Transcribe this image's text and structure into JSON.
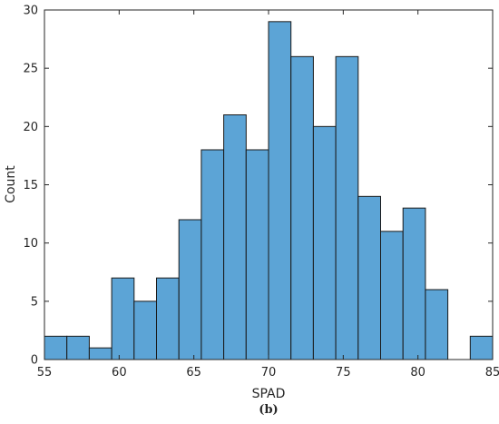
{
  "chart_data": {
    "type": "bar",
    "subtype": "histogram",
    "xlabel": "SPAD",
    "ylabel": "Count",
    "caption": "(b)",
    "xlim": [
      55,
      85
    ],
    "ylim": [
      0,
      30
    ],
    "xticks": [
      55,
      60,
      65,
      70,
      75,
      80,
      85
    ],
    "yticks": [
      0,
      5,
      10,
      15,
      20,
      25,
      30
    ],
    "bin_width": 1.5,
    "bins": [
      {
        "start": 55.0,
        "end": 56.5,
        "count": 2
      },
      {
        "start": 56.5,
        "end": 58.0,
        "count": 2
      },
      {
        "start": 58.0,
        "end": 59.5,
        "count": 1
      },
      {
        "start": 59.5,
        "end": 61.0,
        "count": 7
      },
      {
        "start": 61.0,
        "end": 62.5,
        "count": 5
      },
      {
        "start": 62.5,
        "end": 64.0,
        "count": 7
      },
      {
        "start": 64.0,
        "end": 65.5,
        "count": 12
      },
      {
        "start": 65.5,
        "end": 67.0,
        "count": 18
      },
      {
        "start": 67.0,
        "end": 68.5,
        "count": 21
      },
      {
        "start": 68.5,
        "end": 70.0,
        "count": 18
      },
      {
        "start": 70.0,
        "end": 71.5,
        "count": 29
      },
      {
        "start": 71.5,
        "end": 73.0,
        "count": 26
      },
      {
        "start": 73.0,
        "end": 74.5,
        "count": 20
      },
      {
        "start": 74.5,
        "end": 76.0,
        "count": 26
      },
      {
        "start": 76.0,
        "end": 77.5,
        "count": 14
      },
      {
        "start": 77.5,
        "end": 79.0,
        "count": 11
      },
      {
        "start": 79.0,
        "end": 80.5,
        "count": 13
      },
      {
        "start": 80.5,
        "end": 82.0,
        "count": 6
      },
      {
        "start": 82.0,
        "end": 83.5,
        "count": 0
      },
      {
        "start": 83.5,
        "end": 85.0,
        "count": 2
      }
    ],
    "grid": false,
    "legend": "none",
    "colors": {
      "bar_fill": "#5ca4d6",
      "bar_edge": "#1a1a1a",
      "axis": "#262626"
    }
  }
}
